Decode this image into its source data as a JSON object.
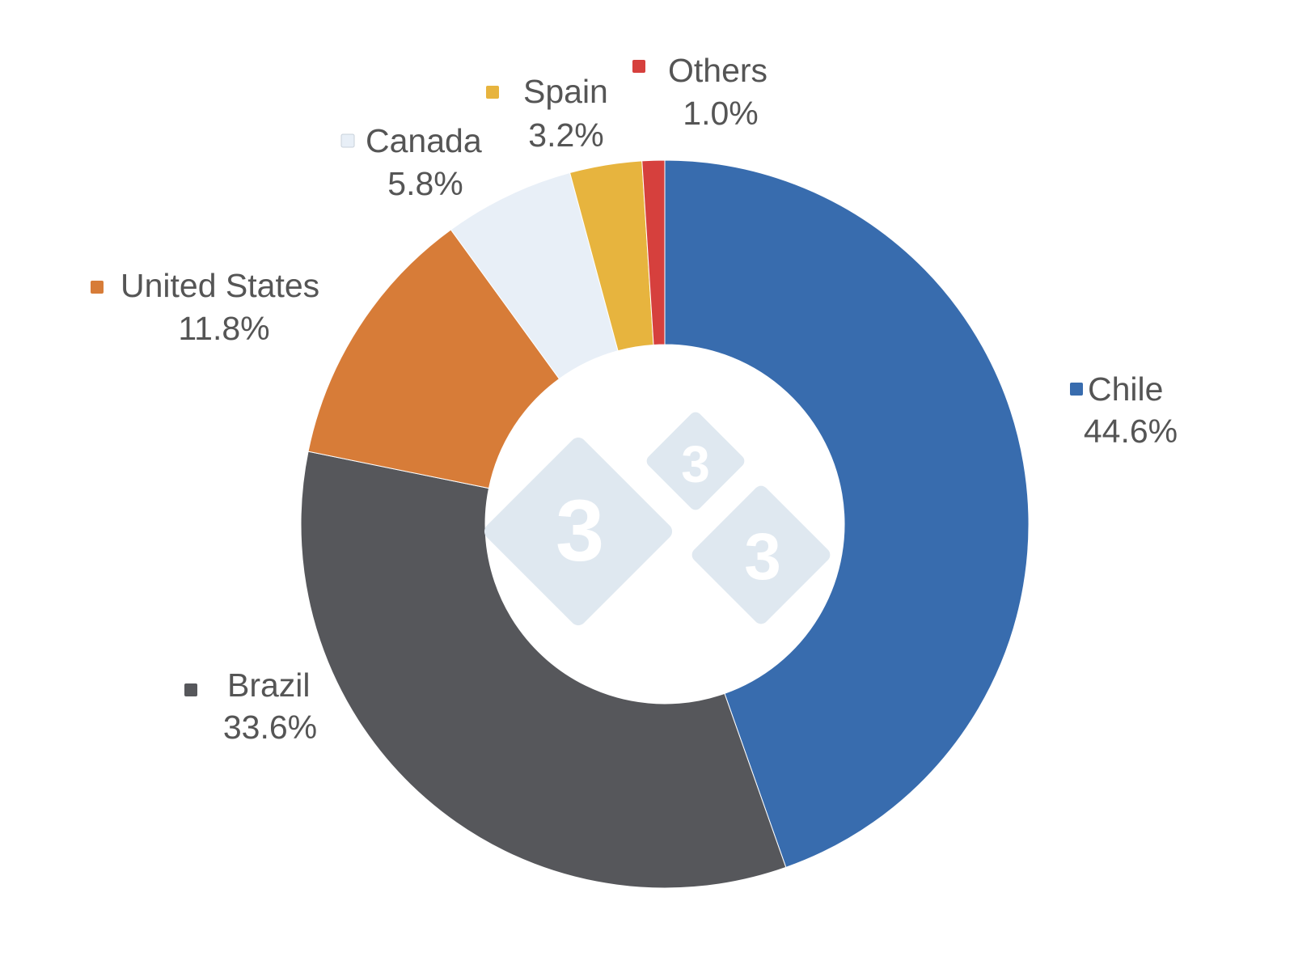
{
  "chart_data": {
    "type": "pie",
    "variant": "donut",
    "start": "top",
    "direction": "clockwise",
    "legend": "data labels with colored square markers beside each slice",
    "slices": [
      {
        "label": "Chile",
        "value": 44.6,
        "value_label": "44.6%",
        "color": "#386CAE"
      },
      {
        "label": "Brazil",
        "value": 33.6,
        "value_label": "33.6%",
        "color": "#56575B"
      },
      {
        "label": "United States",
        "value": 11.8,
        "value_label": "11.8%",
        "color": "#D77C38"
      },
      {
        "label": "Canada",
        "value": 5.8,
        "value_label": "5.8%",
        "color": "#E8EFF7"
      },
      {
        "label": "Spain",
        "value": 3.2,
        "value_label": "3.2%",
        "color": "#E7B43E"
      },
      {
        "label": "Others",
        "value": 1.0,
        "value_label": "1.0%",
        "color": "#D6403D"
      }
    ]
  },
  "watermark": {
    "glyph": "3",
    "icon": "333-logo-icon",
    "color": "#DFE8F0"
  }
}
